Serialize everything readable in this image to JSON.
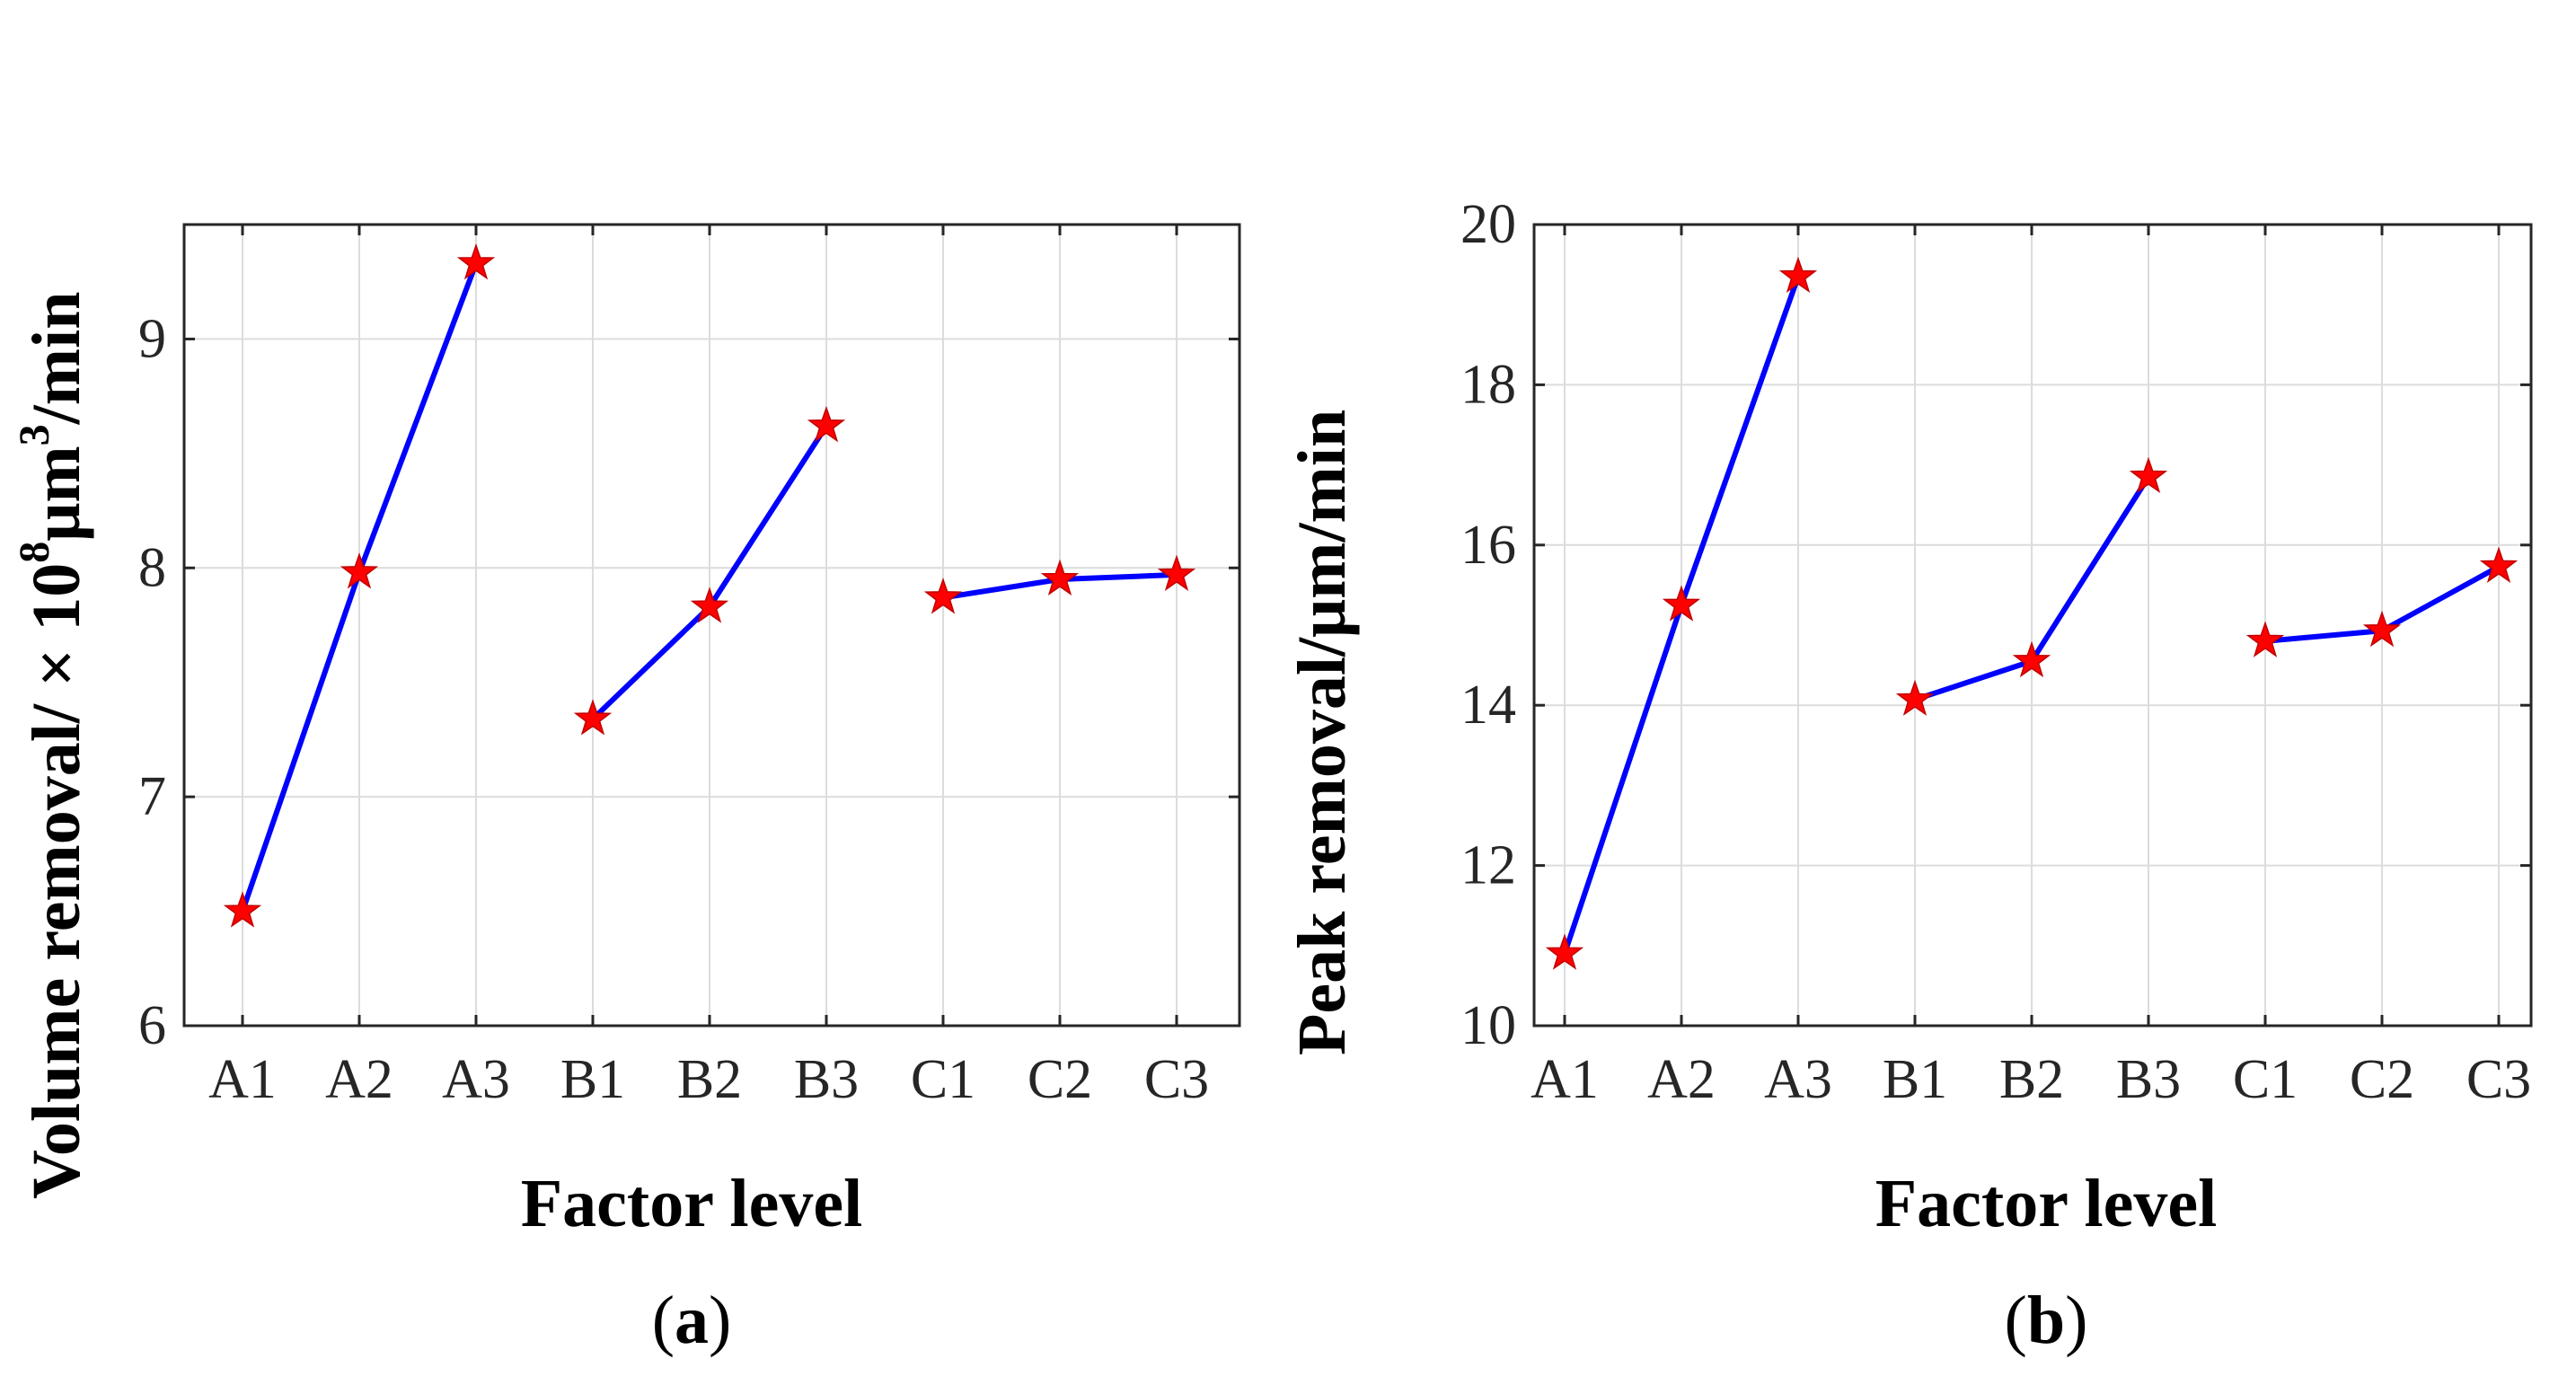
{
  "colors": {
    "line": "#0000ff",
    "marker_fill": "#ff0000",
    "marker_stroke": "#c00000",
    "grid": "#dcdcdc",
    "axis": "#262626"
  },
  "chart_data": [
    {
      "type": "line",
      "panel": "a",
      "panel_letter": "a",
      "categories": [
        "A1",
        "A2",
        "A3",
        "B1",
        "B2",
        "B3",
        "C1",
        "C2",
        "C3"
      ],
      "groups": [
        {
          "name": "A",
          "categories": [
            "A1",
            "A2",
            "A3"
          ],
          "values": [
            6.5,
            7.98,
            9.33
          ]
        },
        {
          "name": "B",
          "categories": [
            "B1",
            "B2",
            "B3"
          ],
          "values": [
            7.34,
            7.83,
            8.62
          ]
        },
        {
          "name": "C",
          "categories": [
            "C1",
            "C2",
            "C3"
          ],
          "values": [
            7.87,
            7.95,
            7.97
          ]
        }
      ],
      "marker": "star",
      "ylim": [
        6,
        9.5
      ],
      "yticks": [
        6,
        7,
        8,
        9
      ],
      "ylabel_text": "Volume removal/  × 10",
      "ylabel_exp1": "8",
      "ylabel_unit": "μm",
      "ylabel_exp2": "3",
      "ylabel_tail": "/min",
      "xlabel": "Factor level",
      "grid": true
    },
    {
      "type": "line",
      "panel": "b",
      "panel_letter": "b",
      "categories": [
        "A1",
        "A2",
        "A3",
        "B1",
        "B2",
        "B3",
        "C1",
        "C2",
        "C3"
      ],
      "groups": [
        {
          "name": "A",
          "categories": [
            "A1",
            "A2",
            "A3"
          ],
          "values": [
            10.9,
            15.25,
            19.35
          ]
        },
        {
          "name": "B",
          "categories": [
            "B1",
            "B2",
            "B3"
          ],
          "values": [
            14.07,
            14.55,
            16.85
          ]
        },
        {
          "name": "C",
          "categories": [
            "C1",
            "C2",
            "C3"
          ],
          "values": [
            14.8,
            14.93,
            15.73
          ]
        }
      ],
      "marker": "star",
      "ylim": [
        10,
        20
      ],
      "yticks": [
        10,
        12,
        14,
        16,
        18,
        20
      ],
      "ylabel": "Peak removal/μm/min",
      "xlabel": "Factor level",
      "grid": true
    }
  ]
}
